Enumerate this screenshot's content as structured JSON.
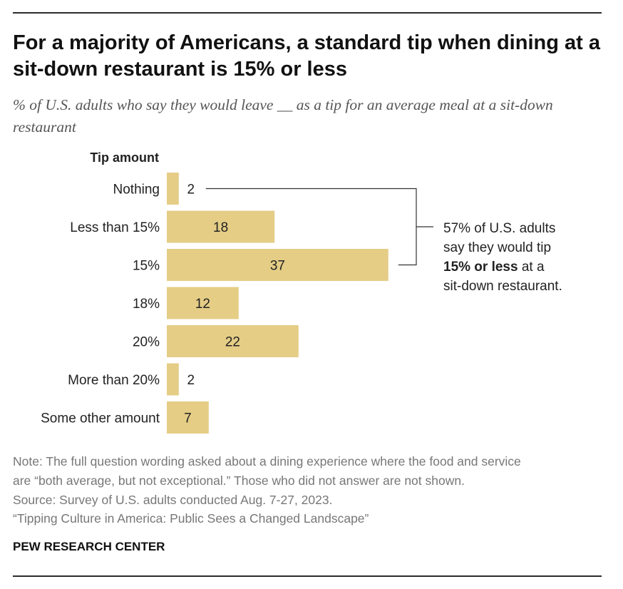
{
  "title": "For a majority of Americans, a standard tip when dining at a sit-down restaurant is 15% or less",
  "subtitle": "% of U.S. adults who say they would leave __ as a tip for an average meal at a sit-down restaurant",
  "chart_data": {
    "type": "bar",
    "orientation": "horizontal",
    "category_header": "Tip amount",
    "categories": [
      "Nothing",
      "Less than 15%",
      "15%",
      "18%",
      "20%",
      "More than 20%",
      "Some other amount"
    ],
    "values": [
      2,
      18,
      37,
      12,
      22,
      2,
      7
    ],
    "bar_color": "#e5cd86",
    "grid": false,
    "annotation": {
      "prefix": "57% of U.S. adults",
      "line2": "say they would tip",
      "bold": "15% or less",
      "after_bold": " at a",
      "line4": "sit-down restaurant.",
      "brackets_categories": [
        "Nothing",
        "Less than 15%",
        "15%"
      ]
    }
  },
  "footer": {
    "note_line1": "Note: The full question wording asked about a dining experience where the food and service",
    "note_line2": "are “both average, but not exceptional.” Those who did not answer are not shown.",
    "source": "Source: Survey of U.S. adults conducted Aug. 7-27, 2023.",
    "report": "“Tipping Culture in America: Public Sees a Changed Landscape”",
    "brand": "PEW RESEARCH CENTER"
  }
}
